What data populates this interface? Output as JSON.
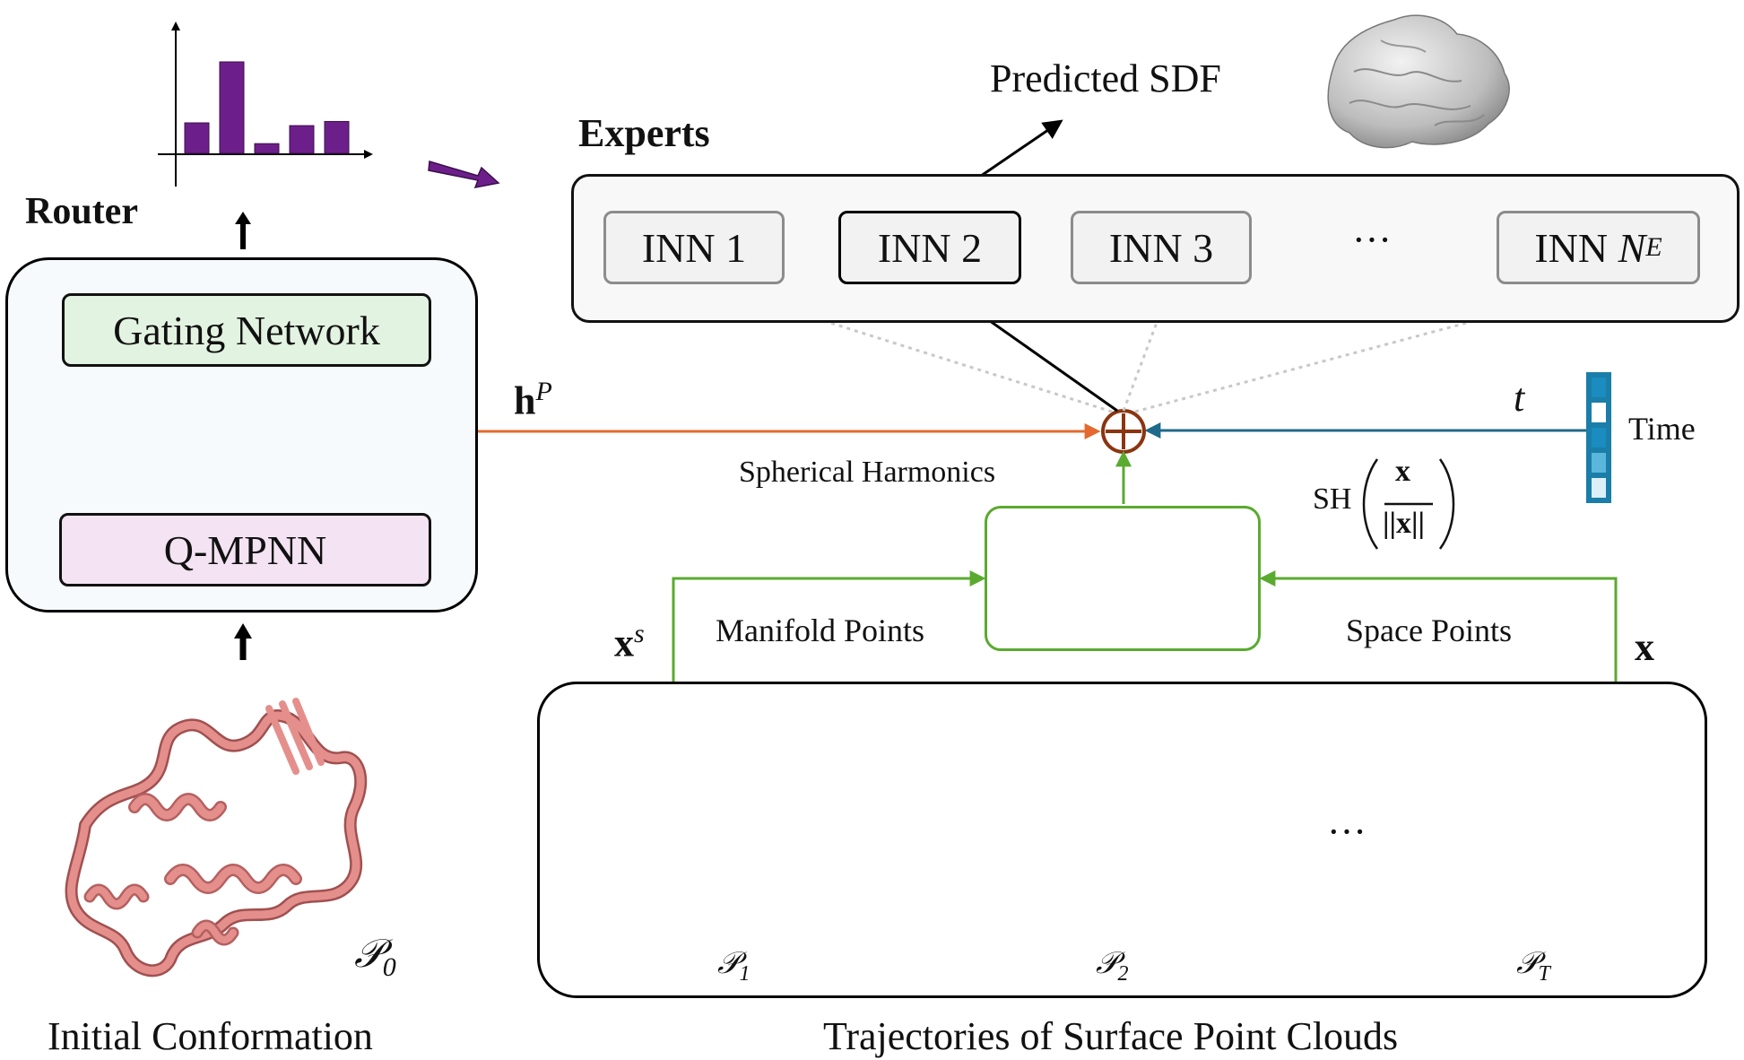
{
  "router": {
    "title": "Router",
    "gating_label": "Gating Network",
    "encoder_label": "Q-MPNN",
    "embedding_colors": [
      "#f2a98a",
      "#e3692f",
      "#ffffff",
      "#f8d9cc",
      "#8b3510",
      "#e3692f"
    ],
    "routing_histogram": [
      0.22,
      0.66,
      0.07,
      0.2,
      0.23
    ]
  },
  "hp_label": "h",
  "hp_superscript": "P",
  "experts": {
    "title": "Experts",
    "items": [
      {
        "name": "INN",
        "index": "1",
        "active": false
      },
      {
        "name": "INN",
        "index": "2",
        "active": true
      },
      {
        "name": "INN",
        "index": "3",
        "active": false
      },
      {
        "name": "INN",
        "index": "N",
        "index_sub": "E",
        "active": false
      }
    ],
    "ellipsis": "···"
  },
  "predicted_sdf_label": "Predicted SDF",
  "time": {
    "symbol": "t",
    "label": "Time",
    "colors": [
      "#1a8cbf",
      "#ffffff",
      "#1a8cbf",
      "#5bb6dc",
      "#dceef7"
    ]
  },
  "spherical_harmonics": {
    "label": "Spherical Harmonics",
    "formula_prefix": "SH",
    "formula_numerator": "x",
    "formula_denominator": "||x||"
  },
  "manifold": {
    "symbol": "x",
    "symbol_sup": "s",
    "label": "Manifold Points"
  },
  "space": {
    "symbol": "x",
    "label": "Space Points"
  },
  "trajectory": {
    "caption": "Trajectories of Surface Point Clouds",
    "frames": [
      {
        "symbol": "𝒫",
        "sub": "1"
      },
      {
        "symbol": "𝒫",
        "sub": "2"
      },
      {
        "symbol": "𝒫",
        "sub": "T"
      }
    ],
    "ellipsis": "···"
  },
  "initial": {
    "caption": "Initial Conformation",
    "symbol": "𝒫",
    "sub": "0"
  },
  "colors": {
    "orange": "#e3692f",
    "blue": "#1f6a8a",
    "green": "#5aaa2f",
    "purple": "#6c1f8a",
    "protein": "#e58f8c"
  }
}
